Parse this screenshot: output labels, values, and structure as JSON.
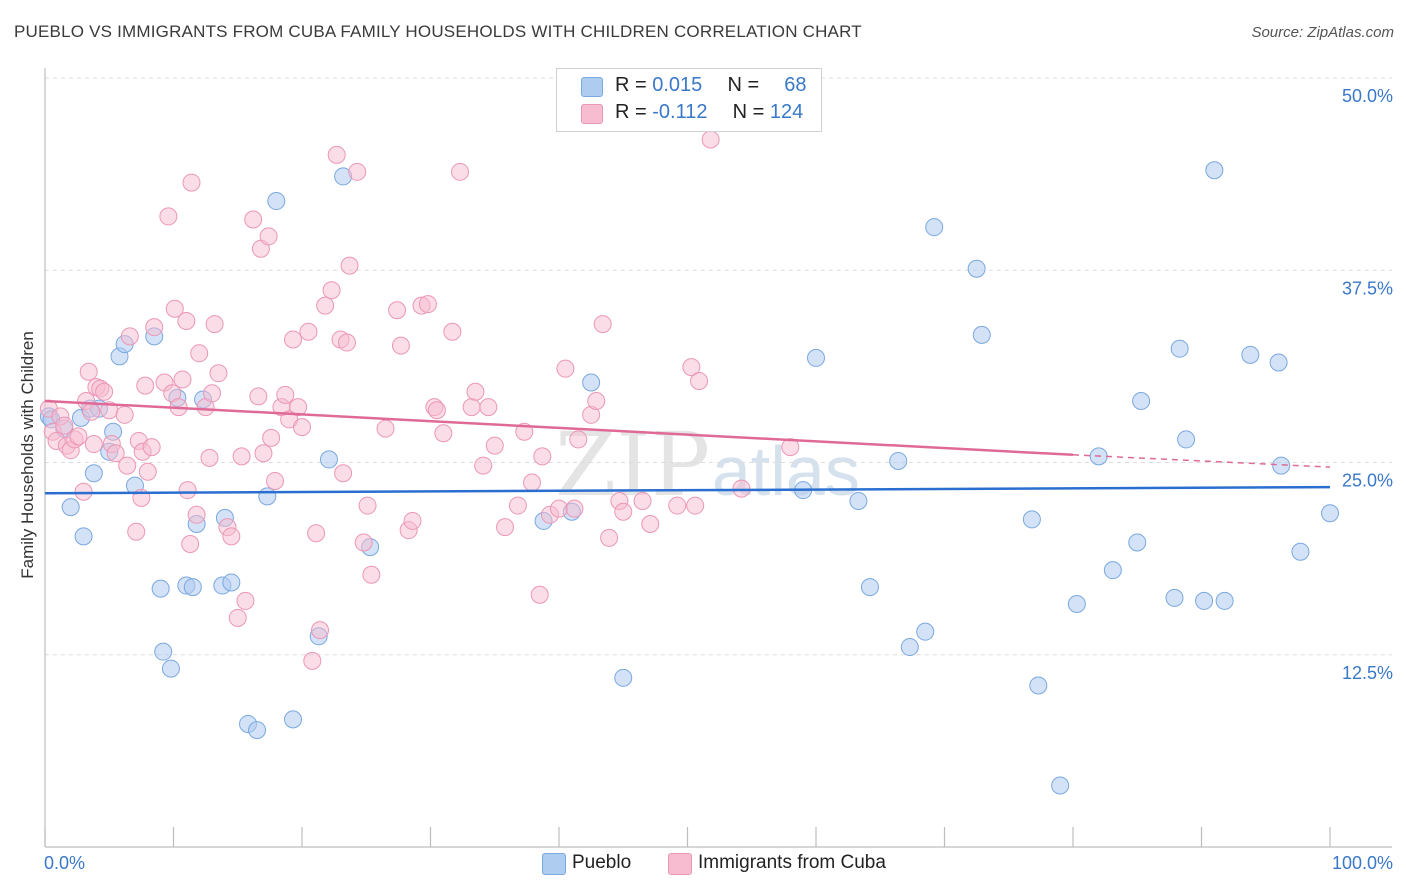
{
  "header": {
    "title": "PUEBLO VS IMMIGRANTS FROM CUBA FAMILY HOUSEHOLDS WITH CHILDREN CORRELATION CHART",
    "source": "Source: ZipAtlas.com"
  },
  "legend": {
    "row1": {
      "r_label": "R =",
      "r_value": "0.015",
      "n_label": "N =",
      "n_value": "68"
    },
    "row2": {
      "r_label": "R =",
      "r_value": "-0.112",
      "n_label": "N =",
      "n_value": "124"
    }
  },
  "bottom_legend": {
    "pueblo": "Pueblo",
    "cuba": "Immigrants from Cuba"
  },
  "watermark": {
    "zip": "ZIP",
    "atlas": "atlas"
  },
  "colors": {
    "pueblo_fill": "#aecbf0",
    "pueblo_stroke": "#7aa8e0",
    "pueblo_line": "#2a6fcf",
    "cuba_fill": "#f7bcd0",
    "cuba_stroke": "#eb97b6",
    "cuba_line": "#e06a97",
    "tick_text": "#3a78c9"
  },
  "chart_data": {
    "type": "scatter",
    "title": "PUEBLO VS IMMIGRANTS FROM CUBA FAMILY HOUSEHOLDS WITH CHILDREN CORRELATION CHART",
    "xlabel": "",
    "ylabel": "Family Households with Children",
    "xlim": [
      0,
      100
    ],
    "ylim": [
      0,
      50
    ],
    "x_tick_labels": [
      "0.0%",
      "100.0%"
    ],
    "y_ticks": [
      12.5,
      25.0,
      37.5,
      50.0
    ],
    "y_tick_labels": [
      "12.5%",
      "25.0%",
      "37.5%",
      "50.0%"
    ],
    "grid": "horizontal dashed",
    "legend_position": "top-center",
    "series": [
      {
        "name": "Pueblo",
        "r": 0.015,
        "n": 68,
        "trend": {
          "x": [
            0,
            100
          ],
          "y": [
            23.0,
            23.4
          ]
        },
        "points": [
          [
            0.3,
            28.0
          ],
          [
            0.5,
            27.8
          ],
          [
            1.5,
            27.2
          ],
          [
            2.0,
            22.1
          ],
          [
            2.8,
            27.9
          ],
          [
            3.0,
            20.2
          ],
          [
            3.5,
            28.5
          ],
          [
            3.8,
            24.3
          ],
          [
            4.2,
            28.5
          ],
          [
            5.0,
            25.7
          ],
          [
            5.3,
            27.0
          ],
          [
            5.8,
            31.9
          ],
          [
            6.2,
            32.7
          ],
          [
            7.0,
            23.5
          ],
          [
            8.5,
            33.2
          ],
          [
            9.0,
            16.8
          ],
          [
            9.2,
            12.7
          ],
          [
            9.8,
            11.6
          ],
          [
            10.3,
            29.2
          ],
          [
            11.0,
            17.0
          ],
          [
            11.5,
            16.9
          ],
          [
            11.8,
            21.0
          ],
          [
            12.3,
            29.1
          ],
          [
            13.8,
            17.0
          ],
          [
            14.0,
            21.4
          ],
          [
            14.5,
            17.2
          ],
          [
            15.8,
            8.0
          ],
          [
            16.5,
            7.6
          ],
          [
            17.3,
            22.8
          ],
          [
            18.0,
            42.0
          ],
          [
            19.3,
            8.3
          ],
          [
            21.3,
            13.7
          ],
          [
            22.1,
            25.2
          ],
          [
            23.2,
            43.6
          ],
          [
            25.3,
            19.5
          ],
          [
            38.8,
            21.2
          ],
          [
            41.0,
            21.8
          ],
          [
            42.5,
            30.2
          ],
          [
            45.0,
            11.0
          ],
          [
            59.0,
            23.2
          ],
          [
            60.0,
            31.8
          ],
          [
            63.3,
            22.5
          ],
          [
            64.2,
            16.9
          ],
          [
            66.4,
            25.1
          ],
          [
            67.3,
            13.0
          ],
          [
            68.5,
            14.0
          ],
          [
            69.2,
            40.3
          ],
          [
            72.5,
            37.6
          ],
          [
            72.9,
            33.3
          ],
          [
            76.8,
            21.3
          ],
          [
            77.3,
            10.5
          ],
          [
            79.0,
            4.0
          ],
          [
            80.3,
            15.8
          ],
          [
            82.0,
            25.4
          ],
          [
            83.1,
            18.0
          ],
          [
            85.0,
            19.8
          ],
          [
            85.3,
            29.0
          ],
          [
            87.9,
            16.2
          ],
          [
            88.3,
            32.4
          ],
          [
            88.8,
            26.5
          ],
          [
            90.2,
            16.0
          ],
          [
            91.0,
            44.0
          ],
          [
            91.8,
            16.0
          ],
          [
            93.8,
            32.0
          ],
          [
            96.0,
            31.5
          ],
          [
            96.2,
            24.8
          ],
          [
            97.7,
            19.2
          ],
          [
            100.0,
            21.7
          ]
        ]
      },
      {
        "name": "Immigrants from Cuba",
        "r": -0.112,
        "n": 124,
        "trend": {
          "x": [
            0,
            80,
            100
          ],
          "y": [
            29.0,
            25.5,
            24.7
          ],
          "solid_until": 80
        },
        "points": [
          [
            0.3,
            28.5
          ],
          [
            0.6,
            27.0
          ],
          [
            0.9,
            26.4
          ],
          [
            1.2,
            28.0
          ],
          [
            1.5,
            27.4
          ],
          [
            1.7,
            26.1
          ],
          [
            2.0,
            25.8
          ],
          [
            2.3,
            26.5
          ],
          [
            2.6,
            26.7
          ],
          [
            3.0,
            23.1
          ],
          [
            3.2,
            29.0
          ],
          [
            3.4,
            30.9
          ],
          [
            3.6,
            28.3
          ],
          [
            3.8,
            26.2
          ],
          [
            4.0,
            29.9
          ],
          [
            4.3,
            29.8
          ],
          [
            4.6,
            29.6
          ],
          [
            5.0,
            28.4
          ],
          [
            5.2,
            26.2
          ],
          [
            5.5,
            25.6
          ],
          [
            6.2,
            28.1
          ],
          [
            6.4,
            24.8
          ],
          [
            6.6,
            33.2
          ],
          [
            7.1,
            20.5
          ],
          [
            7.3,
            26.4
          ],
          [
            7.5,
            22.7
          ],
          [
            7.6,
            25.7
          ],
          [
            7.8,
            30.0
          ],
          [
            8.0,
            24.4
          ],
          [
            8.3,
            26.0
          ],
          [
            8.5,
            33.8
          ],
          [
            9.3,
            30.2
          ],
          [
            9.6,
            41.0
          ],
          [
            9.9,
            29.5
          ],
          [
            10.1,
            35.0
          ],
          [
            10.4,
            28.6
          ],
          [
            10.7,
            30.4
          ],
          [
            11.0,
            34.2
          ],
          [
            11.1,
            23.2
          ],
          [
            11.3,
            19.7
          ],
          [
            11.4,
            43.2
          ],
          [
            11.8,
            21.6
          ],
          [
            12.0,
            32.1
          ],
          [
            12.5,
            28.6
          ],
          [
            12.8,
            25.3
          ],
          [
            13.0,
            29.5
          ],
          [
            13.2,
            34.0
          ],
          [
            13.5,
            30.8
          ],
          [
            14.2,
            20.8
          ],
          [
            14.5,
            20.2
          ],
          [
            15.0,
            14.9
          ],
          [
            15.3,
            25.4
          ],
          [
            15.6,
            16.0
          ],
          [
            16.2,
            40.8
          ],
          [
            16.6,
            29.3
          ],
          [
            16.8,
            38.9
          ],
          [
            17.0,
            25.6
          ],
          [
            17.4,
            39.7
          ],
          [
            17.6,
            26.6
          ],
          [
            17.9,
            23.8
          ],
          [
            18.4,
            28.6
          ],
          [
            18.7,
            29.4
          ],
          [
            19.0,
            27.8
          ],
          [
            19.3,
            33.0
          ],
          [
            19.7,
            28.6
          ],
          [
            20.0,
            27.3
          ],
          [
            20.5,
            33.5
          ],
          [
            20.8,
            12.1
          ],
          [
            21.1,
            20.4
          ],
          [
            21.4,
            14.1
          ],
          [
            21.8,
            35.2
          ],
          [
            22.3,
            36.2
          ],
          [
            22.7,
            45.0
          ],
          [
            23.0,
            33.0
          ],
          [
            23.2,
            24.3
          ],
          [
            23.5,
            32.8
          ],
          [
            23.7,
            37.8
          ],
          [
            24.3,
            43.9
          ],
          [
            24.8,
            19.8
          ],
          [
            25.1,
            22.2
          ],
          [
            25.4,
            17.7
          ],
          [
            26.5,
            27.2
          ],
          [
            27.4,
            34.9
          ],
          [
            27.7,
            32.6
          ],
          [
            28.3,
            20.6
          ],
          [
            28.6,
            21.2
          ],
          [
            29.3,
            35.2
          ],
          [
            29.8,
            35.3
          ],
          [
            30.3,
            28.6
          ],
          [
            30.5,
            28.4
          ],
          [
            31.0,
            26.9
          ],
          [
            31.7,
            33.5
          ],
          [
            32.3,
            43.9
          ],
          [
            33.2,
            28.6
          ],
          [
            33.5,
            29.6
          ],
          [
            34.1,
            24.8
          ],
          [
            34.5,
            28.6
          ],
          [
            35.0,
            26.1
          ],
          [
            35.8,
            20.8
          ],
          [
            36.8,
            22.2
          ],
          [
            37.3,
            27.0
          ],
          [
            37.9,
            23.7
          ],
          [
            38.5,
            16.4
          ],
          [
            38.7,
            25.4
          ],
          [
            39.3,
            21.6
          ],
          [
            40.0,
            22.0
          ],
          [
            40.5,
            31.1
          ],
          [
            41.2,
            22.0
          ],
          [
            41.5,
            26.5
          ],
          [
            42.5,
            28.1
          ],
          [
            42.9,
            29.0
          ],
          [
            43.4,
            34.0
          ],
          [
            43.9,
            20.1
          ],
          [
            44.7,
            22.5
          ],
          [
            45.0,
            21.8
          ],
          [
            46.5,
            22.5
          ],
          [
            47.1,
            21.0
          ],
          [
            49.2,
            22.2
          ],
          [
            50.3,
            31.2
          ],
          [
            50.6,
            22.2
          ],
          [
            50.9,
            30.3
          ],
          [
            51.8,
            46.0
          ],
          [
            54.2,
            23.3
          ],
          [
            58.0,
            26.0
          ]
        ]
      }
    ]
  }
}
